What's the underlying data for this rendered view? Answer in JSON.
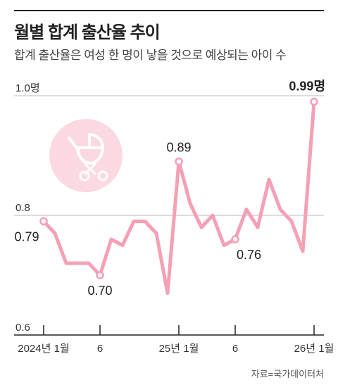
{
  "header": {
    "title": "월별 합계 출산율 추이",
    "subtitle": "합계 출산율은 여성 한 명이 낳을 것으로 예상되는 아이 수"
  },
  "source": "자료=국가데이터처",
  "icon": "baby-stroller-icon",
  "colors": {
    "line": "#f4a0b5",
    "icon_circle": "#fbd9e0",
    "gridline": "#bbbbbb",
    "axis": "#222222"
  },
  "chart_data": {
    "type": "line",
    "title": "월별 합계 출산율 추이",
    "ylim": [
      0.6,
      1.0
    ],
    "yticks": [
      {
        "value": 1.0,
        "label": "1.0명"
      },
      {
        "value": 0.8,
        "label": "0.8"
      },
      {
        "value": 0.6,
        "label": "0.6"
      }
    ],
    "xticks": [
      {
        "index": 0,
        "label": "2024년 1월"
      },
      {
        "index": 5,
        "label": "6"
      },
      {
        "index": 12,
        "label": "25년 1월"
      },
      {
        "index": 17,
        "label": "6"
      },
      {
        "index": 24,
        "label": "26년 1월"
      }
    ],
    "x": [
      "2024-01",
      "2024-02",
      "2024-03",
      "2024-04",
      "2024-05",
      "2024-06",
      "2024-07",
      "2024-08",
      "2024-09",
      "2024-10",
      "2024-11",
      "2024-12",
      "2025-01",
      "2025-02",
      "2025-03",
      "2025-04",
      "2025-05",
      "2025-06",
      "2025-07",
      "2025-08",
      "2025-09",
      "2025-10",
      "2025-11",
      "2025-12",
      "2026-01"
    ],
    "values": [
      0.79,
      0.77,
      0.72,
      0.72,
      0.72,
      0.7,
      0.76,
      0.75,
      0.79,
      0.79,
      0.77,
      0.67,
      0.89,
      0.82,
      0.78,
      0.8,
      0.75,
      0.76,
      0.81,
      0.78,
      0.86,
      0.81,
      0.79,
      0.74,
      0.99
    ],
    "annotations": [
      {
        "index": 0,
        "label": "0.79"
      },
      {
        "index": 5,
        "label": "0.70"
      },
      {
        "index": 12,
        "label": "0.89"
      },
      {
        "index": 17,
        "label": "0.76"
      },
      {
        "index": 24,
        "label": "0.99명"
      }
    ]
  }
}
